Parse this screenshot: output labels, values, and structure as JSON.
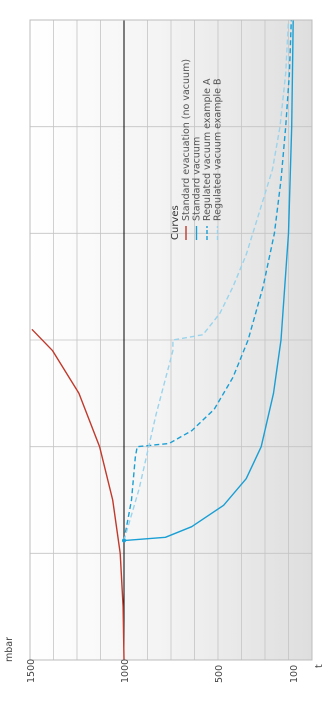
{
  "chart_data": {
    "type": "line",
    "orientation": "rotated-90-ccw",
    "xlabel": "t",
    "ylabel": "mbar",
    "ylim": [
      0,
      1500
    ],
    "xlim": [
      0,
      6
    ],
    "grid": true,
    "reference_line": 1000,
    "y_ticks": [
      {
        "value": 1500,
        "label": "1500"
      },
      {
        "value": 1000,
        "label": "1000"
      },
      {
        "value": 500,
        "label": "500"
      },
      {
        "value": 100,
        "label": "100"
      }
    ],
    "legend": {
      "title": "Curves",
      "placement": "right"
    },
    "series": [
      {
        "name": "Standard evacuation (no vacuum)",
        "color": "#c0392b",
        "dash": "solid",
        "points": [
          [
            0,
            1000
          ],
          [
            0.5,
            1005
          ],
          [
            1.0,
            1020
          ],
          [
            1.5,
            1060
          ],
          [
            2.0,
            1130
          ],
          [
            2.5,
            1240
          ],
          [
            2.9,
            1380
          ],
          [
            3.1,
            1490
          ]
        ]
      },
      {
        "name": "Standard vacuum",
        "color": "#1a9fd4",
        "dash": "solid",
        "points": [
          [
            1.12,
            1000
          ],
          [
            1.15,
            780
          ],
          [
            1.25,
            640
          ],
          [
            1.45,
            470
          ],
          [
            1.7,
            350
          ],
          [
            2.0,
            270
          ],
          [
            2.5,
            205
          ],
          [
            3.0,
            165
          ],
          [
            4.0,
            125
          ],
          [
            5.0,
            108
          ],
          [
            6.0,
            100
          ]
        ]
      },
      {
        "name": "Regulated vacuum example A",
        "color": "#1a9fd4",
        "dash": "dashed",
        "points": [
          [
            1.12,
            1000
          ],
          [
            1.5,
            960
          ],
          [
            1.9,
            940
          ],
          [
            2.0,
            930
          ],
          [
            2.03,
            760
          ],
          [
            2.15,
            640
          ],
          [
            2.35,
            520
          ],
          [
            2.65,
            420
          ],
          [
            3.0,
            340
          ],
          [
            3.5,
            260
          ],
          [
            4.0,
            200
          ],
          [
            4.5,
            165
          ],
          [
            5.0,
            140
          ],
          [
            5.5,
            120
          ],
          [
            6.0,
            110
          ]
        ]
      },
      {
        "name": "Regulated vacuum example B",
        "color": "#9ad4ec",
        "dash": "dashed",
        "points": [
          [
            1.12,
            1000
          ],
          [
            1.6,
            920
          ],
          [
            2.3,
            830
          ],
          [
            2.9,
            740
          ],
          [
            3.0,
            740
          ],
          [
            3.05,
            580
          ],
          [
            3.25,
            490
          ],
          [
            3.5,
            420
          ],
          [
            3.8,
            350
          ],
          [
            4.2,
            280
          ],
          [
            4.6,
            210
          ],
          [
            5.0,
            170
          ],
          [
            5.5,
            140
          ],
          [
            6.0,
            125
          ]
        ]
      }
    ]
  }
}
